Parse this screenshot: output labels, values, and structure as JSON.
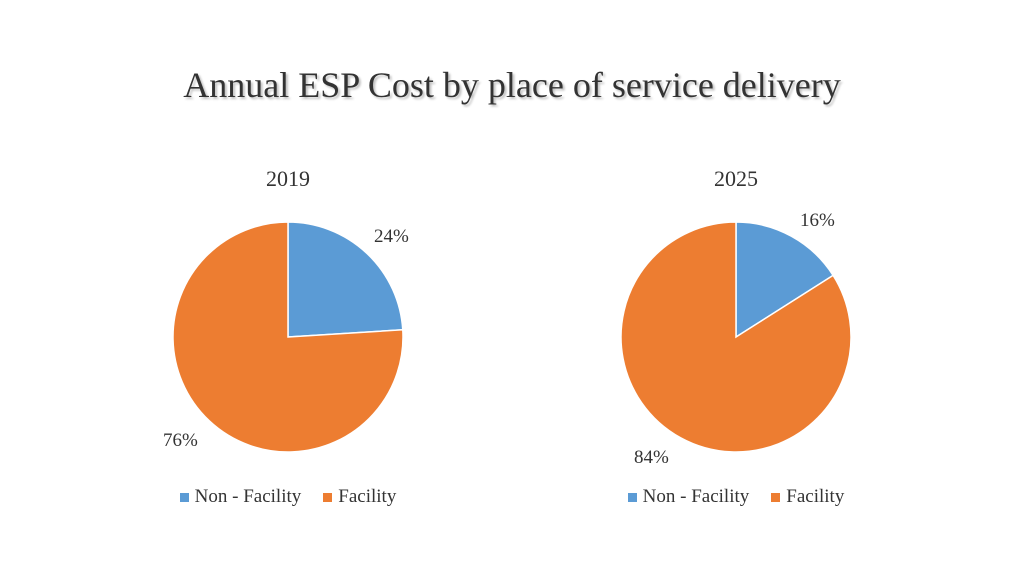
{
  "title": "Annual ESP Cost by place of service delivery",
  "colors": {
    "non_facility": "#5B9BD5",
    "facility": "#ED7D31",
    "edge": "#ffffff"
  },
  "chart_data": [
    {
      "type": "pie",
      "title": "2019",
      "categories": [
        "Non - Facility",
        "Facility"
      ],
      "values": [
        24,
        76
      ],
      "labels": [
        "24%",
        "76%"
      ],
      "legend": "bottom"
    },
    {
      "type": "pie",
      "title": "2025",
      "categories": [
        "Non - Facility",
        "Facility"
      ],
      "values": [
        16,
        84
      ],
      "labels": [
        "16%",
        "84%"
      ],
      "legend": "bottom"
    }
  ]
}
